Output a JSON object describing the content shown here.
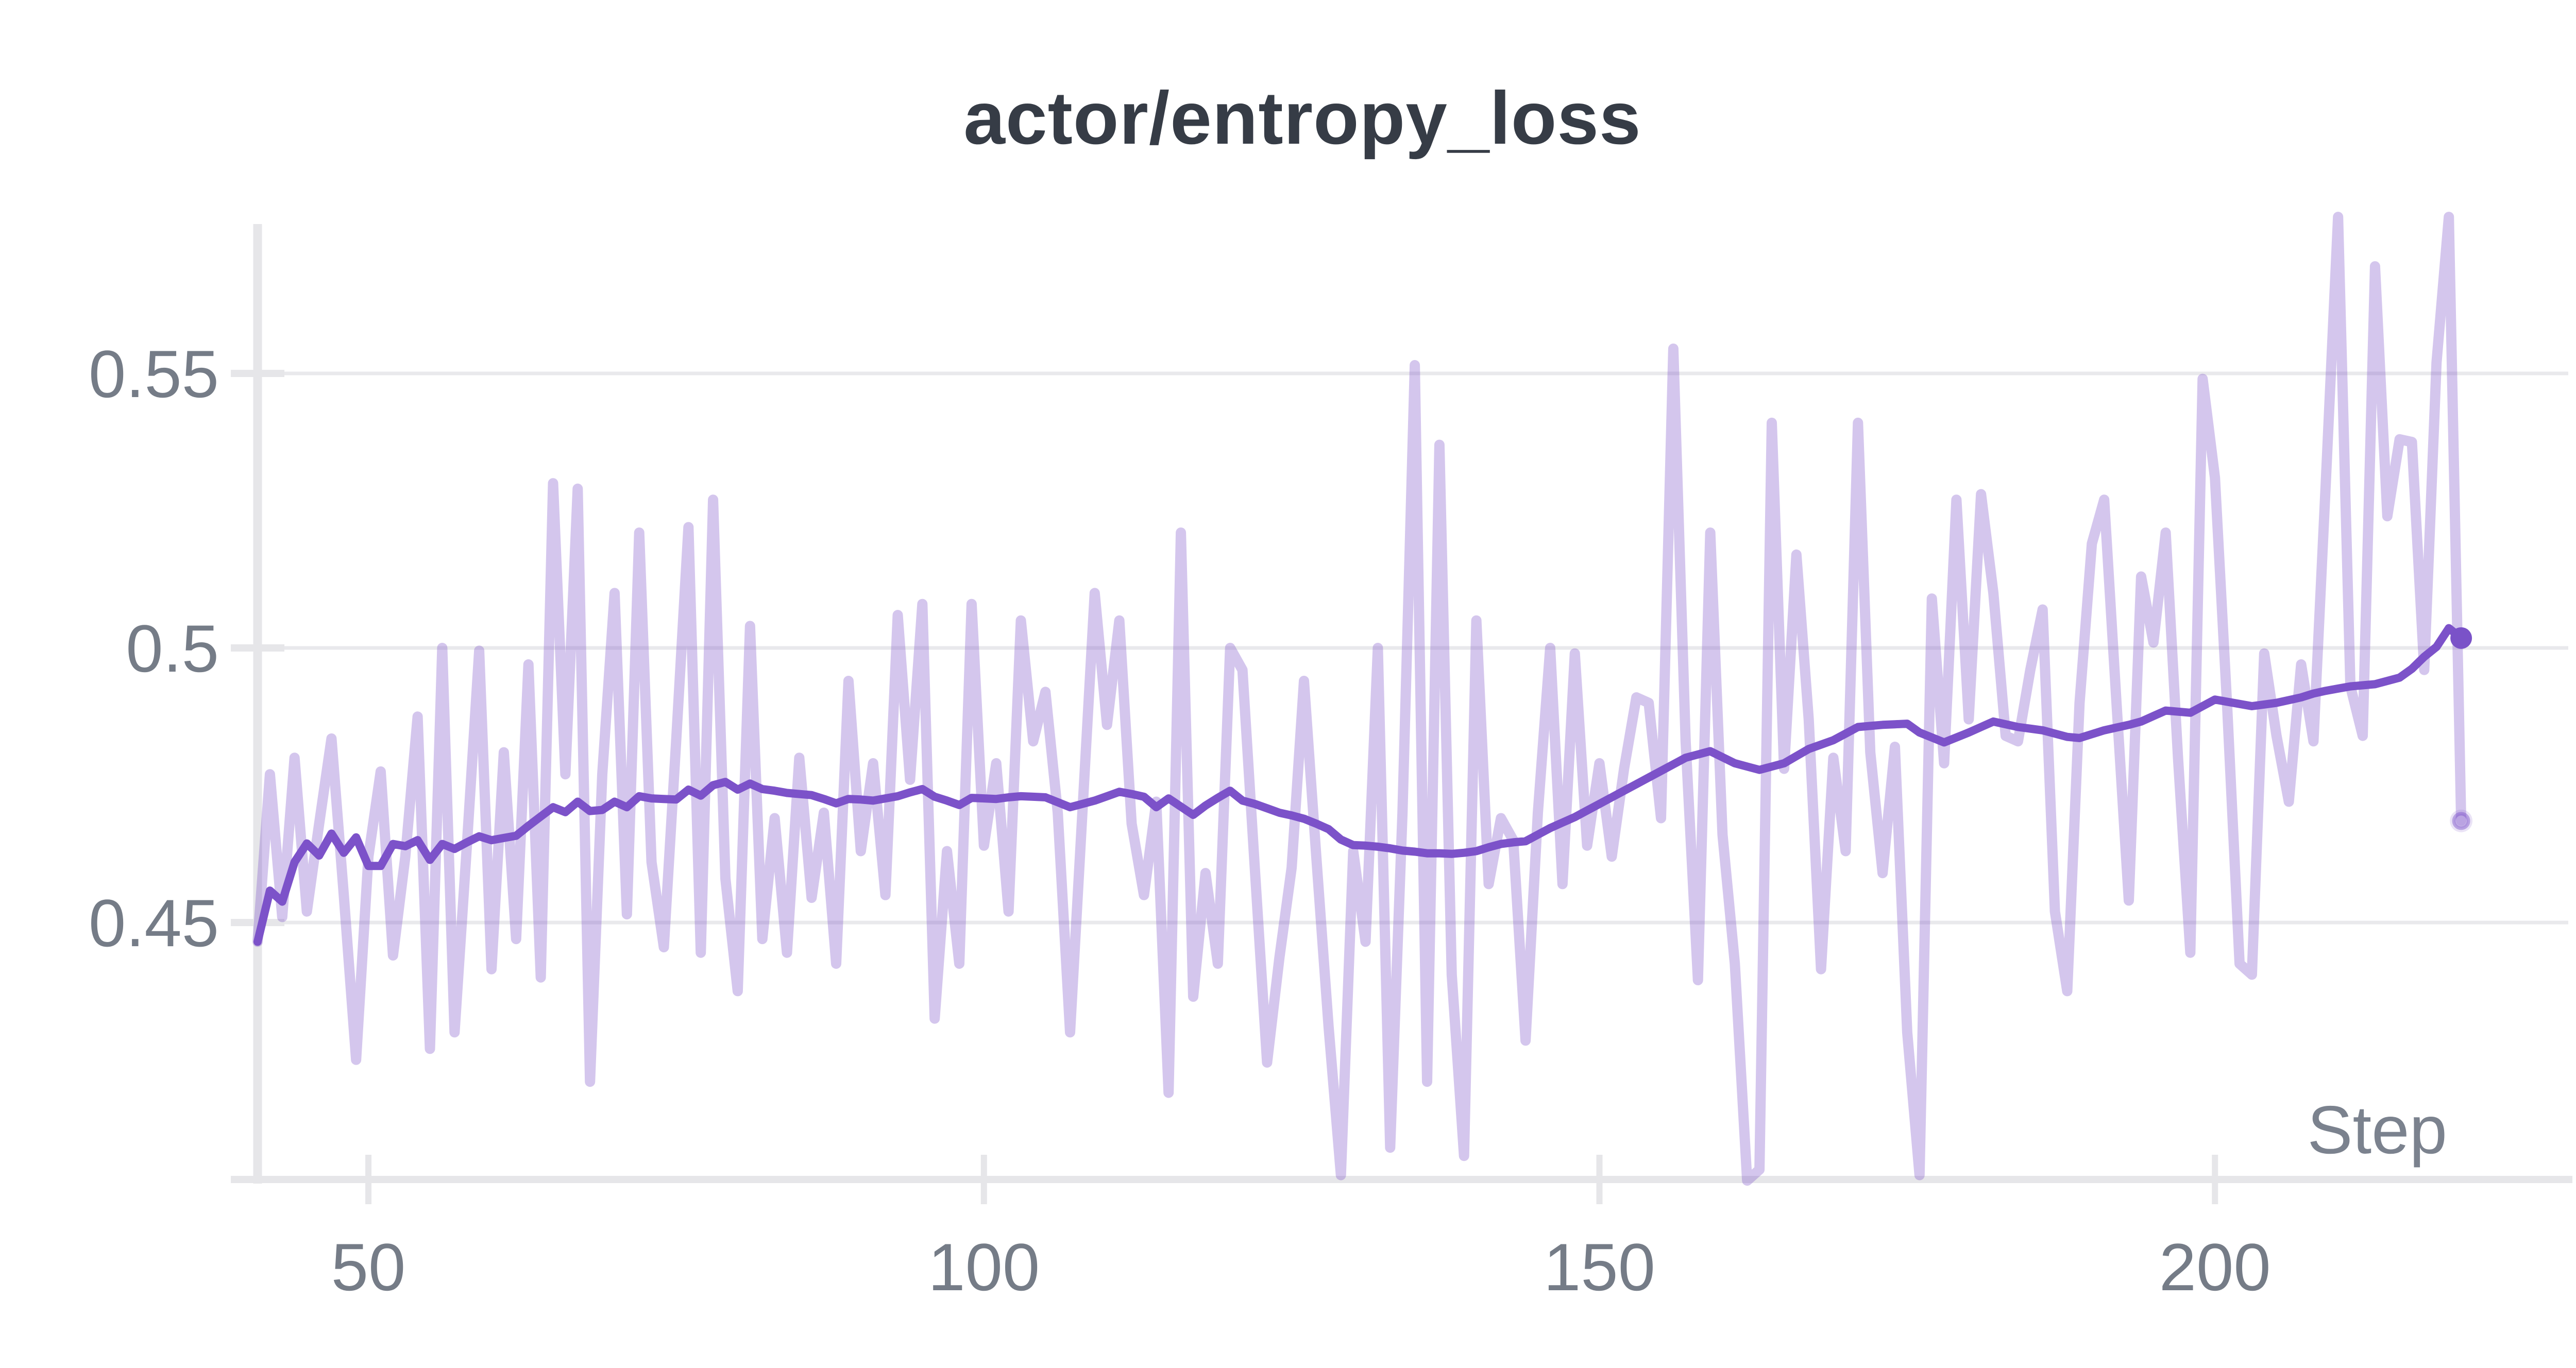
{
  "header": {
    "title": "actor/entropy_loss"
  },
  "chart_data": {
    "type": "line",
    "title": "actor/entropy_loss",
    "xlabel": "Step",
    "ylabel": "",
    "xlim": [
      41,
      228.7
    ],
    "ylim": [
      0.4032,
      0.5772
    ],
    "grid": "horizontal-only",
    "legend": "none",
    "x_ticks": [
      {
        "value": 50,
        "label": "50"
      },
      {
        "value": 100,
        "label": "100"
      },
      {
        "value": 150,
        "label": "150"
      },
      {
        "value": 200,
        "label": "200"
      }
    ],
    "y_ticks": [
      {
        "value": 0.55,
        "label": "0.55"
      },
      {
        "value": 0.5,
        "label": "0.5"
      },
      {
        "value": 0.45,
        "label": "0.45"
      }
    ],
    "colors": {
      "raw_line": "rgba(124,82,201,0.33)",
      "smoothed_line": "#7c52c9",
      "final_dot": "#7a52c8",
      "halo_ring": "rgba(124,82,201,0.45)",
      "halo_fill": "rgba(124,82,201,0.16)",
      "gridline": "#e9e9ec",
      "axis": "#e6e6e9",
      "tick_text": "#757c87",
      "title_text": "#363c46",
      "background": "#ffffff"
    },
    "x": [
      41,
      42,
      43,
      44,
      45,
      46,
      47,
      48,
      49,
      50,
      51,
      52,
      53,
      54,
      55,
      56,
      57,
      58,
      59,
      60,
      61,
      62,
      63,
      64,
      65,
      66,
      67,
      68,
      69,
      70,
      71,
      72,
      73,
      74,
      75,
      76,
      77,
      78,
      79,
      80,
      81,
      82,
      83,
      84,
      85,
      86,
      87,
      88,
      89,
      90,
      91,
      92,
      93,
      94,
      95,
      96,
      97,
      98,
      99,
      100,
      101,
      102,
      103,
      104,
      105,
      106,
      107,
      108,
      109,
      110,
      111,
      112,
      113,
      114,
      115,
      116,
      117,
      118,
      119,
      120,
      121,
      122,
      123,
      124,
      125,
      126,
      127,
      128,
      129,
      130,
      131,
      132,
      133,
      134,
      135,
      136,
      137,
      138,
      139,
      140,
      141,
      142,
      143,
      144,
      145,
      146,
      147,
      148,
      149,
      150,
      151,
      152,
      153,
      154,
      155,
      156,
      157,
      158,
      159,
      160,
      161,
      162,
      163,
      164,
      165,
      166,
      167,
      168,
      169,
      170,
      171,
      172,
      173,
      174,
      175,
      176,
      177,
      178,
      179,
      180,
      181,
      182,
      183,
      184,
      185,
      186,
      187,
      188,
      189,
      190,
      191,
      192,
      193,
      194,
      195,
      196,
      197,
      198,
      199,
      200,
      201,
      202,
      203,
      204,
      205,
      206,
      207,
      208,
      209,
      210,
      211,
      212,
      213,
      214,
      215,
      216,
      217,
      218,
      219,
      220
    ],
    "series": [
      {
        "name": "raw",
        "role": "unsmoothed-metric",
        "stroke_width": 20,
        "values": [
          0.4465,
          0.477,
          0.451,
          0.48,
          0.452,
          0.468,
          0.4835,
          0.455,
          0.425,
          0.462,
          0.4775,
          0.444,
          0.462,
          0.4875,
          0.427,
          0.5,
          0.43,
          0.464,
          0.4995,
          0.4415,
          0.481,
          0.447,
          0.497,
          0.44,
          0.53,
          0.477,
          0.529,
          0.421,
          0.477,
          0.51,
          0.4515,
          0.521,
          0.461,
          0.4455,
          0.483,
          0.522,
          0.4445,
          0.527,
          0.458,
          0.4375,
          0.504,
          0.447,
          0.469,
          0.4445,
          0.48,
          0.4545,
          0.47,
          0.4425,
          0.494,
          0.463,
          0.479,
          0.455,
          0.506,
          0.476,
          0.508,
          0.4325,
          0.463,
          0.4425,
          0.508,
          0.464,
          0.479,
          0.452,
          0.505,
          0.483,
          0.492,
          0.47,
          0.43,
          0.47,
          0.51,
          0.486,
          0.505,
          0.468,
          0.455,
          0.472,
          0.419,
          0.521,
          0.4365,
          0.459,
          0.4425,
          0.5,
          0.496,
          0.46,
          0.4245,
          0.4435,
          0.46,
          0.494,
          0.462,
          0.431,
          0.404,
          0.463,
          0.4465,
          0.5,
          0.409,
          0.47,
          0.5515,
          0.421,
          0.537,
          0.4405,
          0.4075,
          0.505,
          0.457,
          0.469,
          0.465,
          0.4285,
          0.47,
          0.5,
          0.457,
          0.499,
          0.464,
          0.479,
          0.462,
          0.478,
          0.491,
          0.49,
          0.469,
          0.5545,
          0.483,
          0.4395,
          0.521,
          0.466,
          0.4425,
          0.403,
          0.405,
          0.541,
          0.478,
          0.517,
          0.487,
          0.4415,
          0.48,
          0.463,
          0.541,
          0.481,
          0.459,
          0.482,
          0.43,
          0.404,
          0.509,
          0.479,
          0.527,
          0.487,
          0.528,
          0.51,
          0.484,
          0.483,
          0.496,
          0.507,
          0.452,
          0.4375,
          0.49,
          0.519,
          0.527,
          0.49,
          0.454,
          0.513,
          0.501,
          0.521,
          0.48,
          0.4445,
          0.549,
          0.531,
          0.489,
          0.4425,
          0.4405,
          0.499,
          0.484,
          0.472,
          0.497,
          0.483,
          0.53,
          0.5785,
          0.493,
          0.484,
          0.5695,
          0.524,
          0.538,
          0.5375,
          0.496,
          0.552,
          0.5785,
          0.4685
        ]
      },
      {
        "name": "smoothed",
        "role": "smoothed-metric",
        "stroke_width": 16,
        "values": [
          0.4465,
          0.4558,
          0.4538,
          0.461,
          0.4644,
          0.4622,
          0.4662,
          0.4627,
          0.4655,
          0.4603,
          0.4603,
          0.4643,
          0.4639,
          0.465,
          0.4614,
          0.4643,
          0.4634,
          0.4646,
          0.4657,
          0.465,
          0.4654,
          0.4658,
          0.4676,
          0.4693,
          0.471,
          0.4701,
          0.472,
          0.4703,
          0.4705,
          0.472,
          0.471,
          0.473,
          0.4726,
          0.4725,
          0.4724,
          0.4742,
          0.4731,
          0.475,
          0.4756,
          0.4742,
          0.4753,
          0.4743,
          0.474,
          0.4736,
          0.4734,
          0.4732,
          0.4725,
          0.4717,
          0.4725,
          0.4724,
          0.4722,
          0.4726,
          0.473,
          0.4737,
          0.4743,
          0.4729,
          0.4722,
          0.4714,
          0.4727,
          0.4726,
          0.4725,
          0.4728,
          0.473,
          0.4729,
          0.4728,
          0.4719,
          0.471,
          0.4716,
          0.4722,
          0.473,
          0.4738,
          0.4734,
          0.4729,
          0.471,
          0.4726,
          0.4711,
          0.4696,
          0.4713,
          0.4727,
          0.474,
          0.4722,
          0.4716,
          0.4708,
          0.47,
          0.4695,
          0.4689,
          0.468,
          0.467,
          0.4651,
          0.4641,
          0.464,
          0.4638,
          0.4635,
          0.4631,
          0.4629,
          0.4626,
          0.4626,
          0.4625,
          0.4627,
          0.463,
          0.4637,
          0.4643,
          0.4646,
          0.4648,
          0.466,
          0.4672,
          0.4682,
          0.4692,
          0.4704,
          0.4716,
          0.4728,
          0.474,
          0.4752,
          0.4764,
          0.4776,
          0.4788,
          0.48,
          0.4806,
          0.4812,
          0.4801,
          0.479,
          0.4784,
          0.4778,
          0.4784,
          0.479,
          0.4803,
          0.4816,
          0.4824,
          0.4832,
          0.4844,
          0.4856,
          0.4858,
          0.486,
          0.4861,
          0.4862,
          0.4846,
          0.4837,
          0.4828,
          0.4837,
          0.4846,
          0.4856,
          0.4866,
          0.4861,
          0.4856,
          0.4853,
          0.485,
          0.4844,
          0.4838,
          0.4836,
          0.4843,
          0.485,
          0.4855,
          0.486,
          0.4866,
          0.4876,
          0.4886,
          0.4884,
          0.4882,
          0.4894,
          0.4906,
          0.4902,
          0.4898,
          0.4894,
          0.4897,
          0.49,
          0.4905,
          0.491,
          0.4917,
          0.4922,
          0.4926,
          0.493,
          0.4932,
          0.4934,
          0.494,
          0.4946,
          0.4962,
          0.4984,
          0.5002,
          0.5036,
          0.5018
        ]
      }
    ],
    "end_markers": {
      "smoothed_final": {
        "x": 220,
        "y": 0.5018
      },
      "raw_final": {
        "x": 220,
        "y": 0.4685
      }
    }
  }
}
